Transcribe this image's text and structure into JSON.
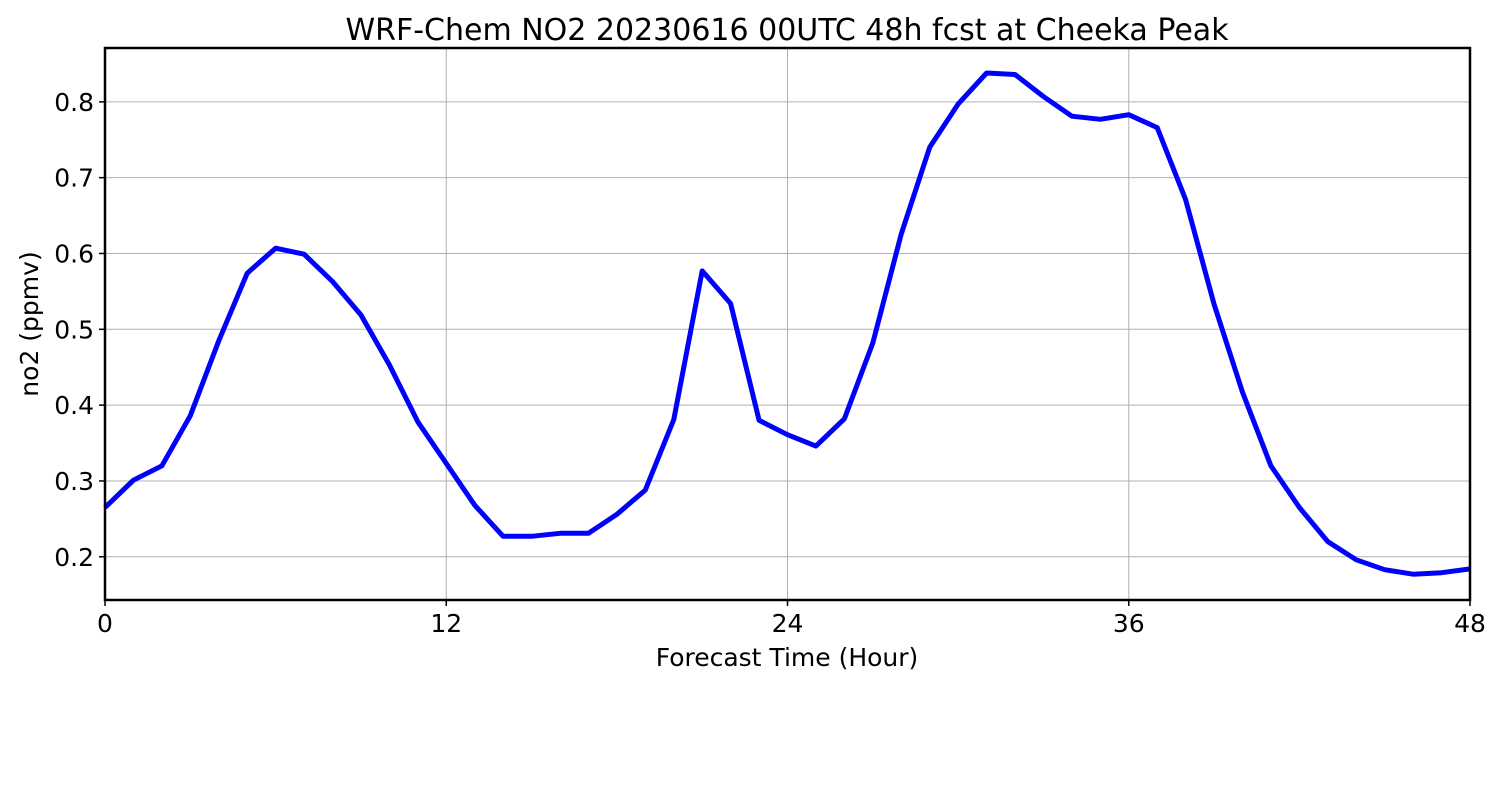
{
  "chart_data": {
    "type": "line",
    "title": "WRF-Chem NO2  20230616 00UTC 48h fcst at Cheeka Peak",
    "xlabel": "Forecast Time (Hour)",
    "ylabel": "no2  (ppmv)",
    "xlim": [
      0,
      48
    ],
    "ylim": [
      0.143,
      0.871
    ],
    "xticks": [
      0,
      12,
      24,
      36,
      48
    ],
    "xtick_labels": [
      "0",
      "12",
      "24",
      "36",
      "48"
    ],
    "yticks": [
      0.2,
      0.3,
      0.4,
      0.5,
      0.6,
      0.7,
      0.8
    ],
    "ytick_labels": [
      "0.2",
      "0.3",
      "0.4",
      "0.5",
      "0.6",
      "0.7",
      "0.8"
    ],
    "grid": true,
    "line_color": "#0000ff",
    "series": [
      {
        "x": [
          0,
          1,
          2,
          3,
          4,
          5,
          6,
          7,
          8,
          9,
          10,
          11,
          12,
          13,
          14,
          15,
          16,
          17,
          18,
          19,
          20,
          21,
          22,
          23,
          24,
          25,
          26,
          27,
          28,
          29,
          30,
          31,
          32,
          33,
          34,
          35,
          36,
          37,
          38,
          39,
          40,
          41,
          42,
          43,
          44,
          45,
          46,
          47,
          48
        ],
        "values": [
          0.265,
          0.301,
          0.32,
          0.386,
          0.485,
          0.574,
          0.607,
          0.599,
          0.563,
          0.519,
          0.453,
          0.378,
          0.323,
          0.268,
          0.227,
          0.227,
          0.231,
          0.231,
          0.256,
          0.288,
          0.381,
          0.577,
          0.534,
          0.38,
          0.361,
          0.346,
          0.382,
          0.482,
          0.626,
          0.74,
          0.797,
          0.838,
          0.836,
          0.807,
          0.781,
          0.777,
          0.783,
          0.766,
          0.671,
          0.533,
          0.417,
          0.32,
          0.265,
          0.22,
          0.196,
          0.183,
          0.177,
          0.179,
          0.184
        ]
      }
    ]
  }
}
